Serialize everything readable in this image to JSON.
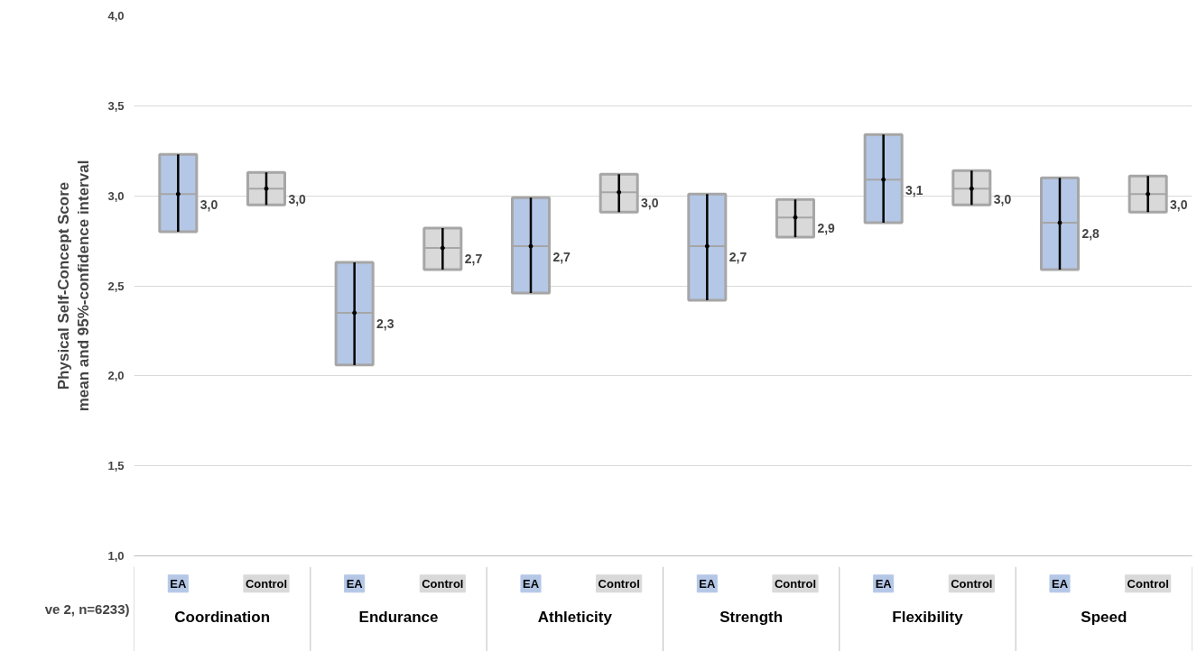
{
  "chart_data": {
    "type": "box",
    "ylabel": "Physical Self-Concept Score\nmean and 95%-confidence interval",
    "categories": [
      "Coordination",
      "Endurance",
      "Athleticity",
      "Strength",
      "Flexibility",
      "Speed"
    ],
    "series": [
      {
        "name": "EA",
        "color": "#b4c7e7",
        "value_labels": [
          "3,0",
          "2,3",
          "2,7",
          "2,7",
          "3,1",
          "2,8"
        ],
        "boxes": [
          {
            "low": 2.8,
            "q1": 2.8,
            "median": 3.01,
            "mean": 3.01,
            "q3": 3.23,
            "high": 3.23
          },
          {
            "low": 2.06,
            "q1": 2.06,
            "median": 2.35,
            "mean": 2.35,
            "q3": 2.63,
            "high": 2.63
          },
          {
            "low": 2.46,
            "q1": 2.46,
            "median": 2.72,
            "mean": 2.72,
            "q3": 2.99,
            "high": 2.99
          },
          {
            "low": 2.42,
            "q1": 2.42,
            "median": 2.72,
            "mean": 2.72,
            "q3": 3.01,
            "high": 3.01
          },
          {
            "low": 2.85,
            "q1": 2.85,
            "median": 3.09,
            "mean": 3.09,
            "q3": 3.34,
            "high": 3.34
          },
          {
            "low": 2.59,
            "q1": 2.59,
            "median": 2.85,
            "mean": 2.85,
            "q3": 3.1,
            "high": 3.1
          }
        ]
      },
      {
        "name": "Control",
        "color": "#d9d9d9",
        "value_labels": [
          "3,0",
          "2,7",
          "3,0",
          "2,9",
          "3,0",
          "3,0"
        ],
        "boxes": [
          {
            "low": 2.95,
            "q1": 2.95,
            "median": 3.04,
            "mean": 3.04,
            "q3": 3.13,
            "high": 3.13
          },
          {
            "low": 2.59,
            "q1": 2.59,
            "median": 2.71,
            "mean": 2.71,
            "q3": 2.82,
            "high": 2.82
          },
          {
            "low": 2.91,
            "q1": 2.91,
            "median": 3.02,
            "mean": 3.02,
            "q3": 3.12,
            "high": 3.12
          },
          {
            "low": 2.77,
            "q1": 2.77,
            "median": 2.88,
            "mean": 2.88,
            "q3": 2.98,
            "high": 2.98
          },
          {
            "low": 2.95,
            "q1": 2.95,
            "median": 3.04,
            "mean": 3.04,
            "q3": 3.14,
            "high": 3.14
          },
          {
            "low": 2.91,
            "q1": 2.91,
            "median": 3.01,
            "mean": 3.01,
            "q3": 3.11,
            "high": 3.11
          }
        ]
      }
    ],
    "ylim": [
      1.0,
      4.0
    ],
    "yticks": [
      {
        "value": 1.0,
        "label": "1,0"
      },
      {
        "value": 1.5,
        "label": "1,5"
      },
      {
        "value": 2.0,
        "label": "2,0"
      },
      {
        "value": 2.5,
        "label": "2,5"
      },
      {
        "value": 3.0,
        "label": "3,0"
      },
      {
        "value": 3.5,
        "label": "3,5"
      },
      {
        "value": 4.0,
        "label": "4,0"
      }
    ],
    "grid": "y",
    "annotations": [
      "ve 2, n=6233)"
    ]
  }
}
